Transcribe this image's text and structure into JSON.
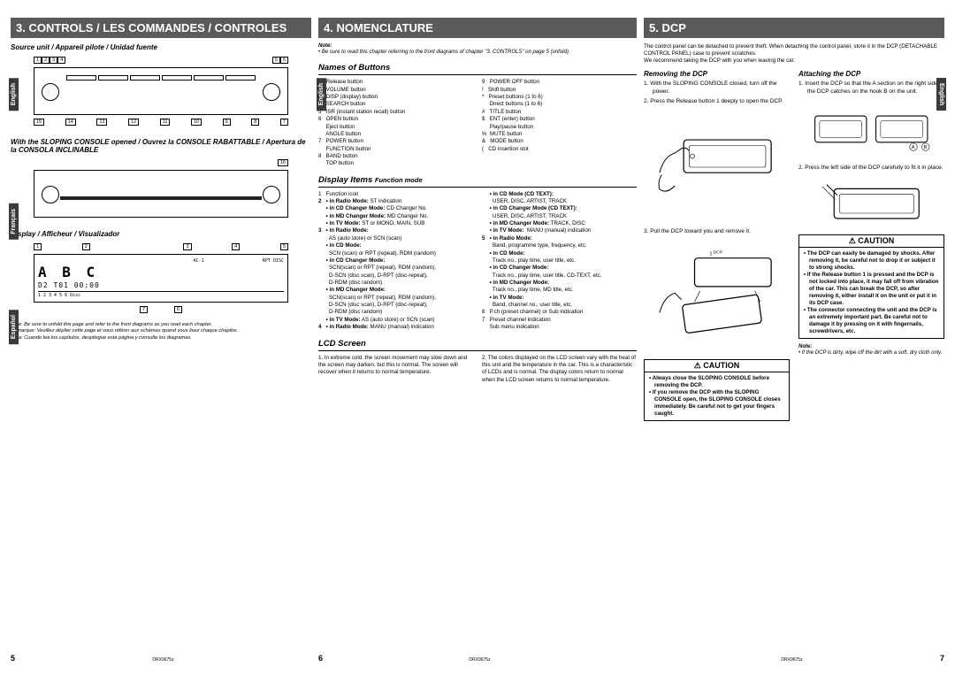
{
  "col1": {
    "header": "3. CONTROLS / LES COMMANDES / CONTROLES",
    "source_unit": "Source unit / Appareil pilote / Unidad fuente",
    "sloping_console": "With the SLOPING CONSOLE opened / Ouvrez la CONSOLE RABATTABLE / Apertura de la CONSOLA INCLINABLE",
    "display_label": "Display / Afficheur / Visualizador",
    "lcd_line1": "A B C",
    "lcd_line2": "D2  T01  00:00",
    "lcd_left": "AC-1",
    "lcd_right": "RPT    DISC",
    "lcd_scale": "1     2     3     4     5     6   Disc",
    "note_en": "Note: Be sure to unfold this page and refer to the front diagrams as you read each chapter.",
    "note_fr": "Remarque: Veuillez déplier cette page et vous référer aux schémas quand vous lisez chaque chapitre.",
    "note_es": "Nota: Cuando lea los capítulos, despliegue esta página y consulte los diagramas.",
    "callouts_top": [
      "1",
      "2",
      "3",
      "4",
      "5",
      "6"
    ],
    "callouts_bot": [
      "15",
      "14",
      "13",
      "12",
      "11",
      "10",
      "9",
      "8",
      "7"
    ],
    "callouts_mid": [
      "16"
    ],
    "callouts_lcd_top": [
      "1",
      "2",
      "3",
      "4",
      "5"
    ],
    "callouts_lcd_bot": [
      "7",
      "6"
    ],
    "page_num": "5",
    "doc_code": "DRX9675z",
    "langs": [
      "English",
      "Français",
      "Español"
    ]
  },
  "col2": {
    "header": "4. NOMENCLATURE",
    "note_label": "Note:",
    "note_text": "• Be sure to read this chapter referring to the front diagrams of chapter \"3. CONTROLS\" on page 5 (unfold).",
    "names_heading": "Names of Buttons",
    "buttons_left": [
      "1   Release button",
      "2   VOLUME button",
      "3   DISP (display) button",
      "4   SEARCH button",
      "5   ISR (instant station recall) button",
      "6   OPEN button",
      "     Eject button",
      "     ANGLE button",
      "7   POWER button",
      "     FUNCTION button",
      "8   BAND button",
      "     TOP button"
    ],
    "buttons_right": [
      "9   POWER OFF button",
      "!   Shift button",
      "*   Preset buttons (1 to 6)",
      "     Direct buttons (1 to 6)",
      "#   TITLE button",
      "$   ENT (enter) button",
      "     Play/pause button",
      "%  MUTE button",
      "&   MODE button",
      "(   CD insertion slot"
    ],
    "display_heading": "Display Items",
    "display_heading_sub": "Function mode",
    "display_left": [
      "1   Function icon",
      "2   • in Radio Mode: ST indication",
      "     • in CD Changer Mode: CD Changer No.",
      "     • in MD Changer Mode: MD Changer No.",
      "     • in TV Mode: ST or MONO, MAIN, SUB",
      "3   • in Radio Mode:",
      "       AS (auto store) or SCN (scan)",
      "     • in CD Mode:",
      "       SCN (scan) or RPT (repeat), RDM (random)",
      "     • in CD Changer Mode:",
      "       SCN(scan) or RPT (repeat), RDM (random),",
      "       D-SCN (disc scan), D-RPT (disc-repeat),",
      "       D-RDM (disc random)",
      "     • in MD Changer Mode:",
      "       SCN(scan) or RPT (repeat), RDM (random),",
      "       D-SCN (disc scan), D-RPT (disc-repeat),",
      "       D-RDM (disc random)",
      "     • in TV Mode: AS (auto store) or SCN (scan)",
      "4   • in Radio Mode: MANU (manual) indication"
    ],
    "display_right": [
      "     • in CD Mode (CD TEXT):",
      "       USER, DISC, ARTIST, TRACK",
      "     • in CD Changer Mode (CD TEXT):",
      "       USER, DISC, ARTIST, TRACK",
      "     • in MD Changer Mode: TRACK, DISC",
      "     • in TV Mode:  MANU (manual) indication",
      "5   • in Radio Mode:",
      "       Band, programme type, frequency, etc.",
      "     • in CD Mode:",
      "       Track no., play time, user title, etc.",
      "     • in CD Changer Mode:",
      "       Track no., play time, user title, CD-TEXT, etc.",
      "     • in MD Changer Mode:",
      "       Track no., play time, MD title, etc.",
      "     • in TV Mode:",
      "       Band, channel no., user title, etc.",
      "6   P.ch (preset channel) or Sub indication",
      "7   Preset channel indication",
      "     Sub menu indication"
    ],
    "lcd_heading": "LCD Screen",
    "lcd_left": "1.  In extreme cold, the screen movement may slow down and the screen may darken, but this is normal. The screen will recover when it returns to normal temperature.",
    "lcd_right": "2.  The colors displayed on the LCD screen vary with the heat of this unit and the temperature in the car. This is a characteristic of LCDs and is normal. The display colors return to normal when the LCD screen returns to normal temperature.",
    "page_num": "6",
    "doc_code": "DRX9675z",
    "lang": "English"
  },
  "col3": {
    "header": "5. DCP",
    "intro": "The control panel can be detached to prevent theft. When detaching the control panel, store it in the DCP (DETACHABLE CONTROL PANEL) case to prevent scratches.",
    "intro2": "We recommend taking the DCP with you when leaving the car.",
    "removing_heading": "Removing the DCP",
    "removing_steps": [
      "1.  With the SLOPING CONSOLE closed, turn off the power.",
      "2.  Press the Release button 1  deeply to open the DCP.",
      "3.  Pull the DCP toward you and remove it."
    ],
    "dcp_label": "DCP",
    "caution1_hdr": "CAUTION",
    "caution1_items": [
      "• Always close the SLOPING CONSOLE before removing the DCP.",
      "• If you remove the DCP with the SLOPING CONSOLE open, the SLOPING CONSOLE closes immediately. Be careful not to get your fingers caught."
    ],
    "attaching_heading": "Attaching the DCP",
    "attaching_steps": [
      "1.  Insert the DCP so that the A  section on the right side of the DCP catches on the hook B  on the unit.",
      "2.  Press the left side of the DCP carefully to fit it in place."
    ],
    "fig_labels": [
      "A",
      "B"
    ],
    "caution2_hdr": "CAUTION",
    "caution2_items": [
      "• The DCP can easily be damaged by shocks. After removing it, be careful not to drop it or subject it to strong shocks.",
      "• If the Release button 1  is pressed and the DCP is not locked into place, it may fall off from vibration of the car. This can break the DCP, so after removing it, either install it on the unit or put it in its DCP case.",
      "• The connector connecting the unit and the DCP is an extremely important part. Be careful not to damage it by pressing on it with fingernails, screwdrivers, etc."
    ],
    "note_label": "Note:",
    "note_text": "• If the DCP is dirty, wipe off the dirt with a soft, dry cloth only.",
    "page_num": "7",
    "doc_code": "DRX9675z",
    "lang": "English"
  }
}
